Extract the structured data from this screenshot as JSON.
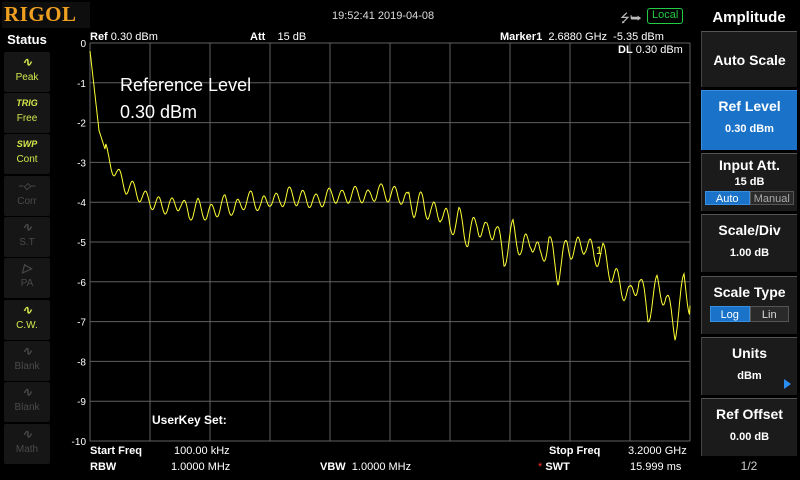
{
  "brand": {
    "name": "RIGOL",
    "color": "#f0a020"
  },
  "topbar": {
    "datetime": "19:52:41 2019-04-08",
    "usb_icon": "usb-icon",
    "remote_badge": "Local"
  },
  "status": {
    "title": "Status",
    "items": [
      {
        "icon": "peak-icon",
        "glyph": "∿",
        "label": "Peak",
        "active": true
      },
      {
        "icon": "trig-icon",
        "glyph": "TRIG",
        "label": "Free",
        "active": true
      },
      {
        "icon": "sweep-icon",
        "glyph": "SWP",
        "label": "Cont",
        "active": true
      },
      {
        "icon": "correction-icon",
        "glyph": "−◇−",
        "label": "Corr",
        "active": false
      },
      {
        "icon": "signal-track-icon",
        "glyph": "∿",
        "label": "S.T",
        "active": false
      },
      {
        "icon": "preamp-icon",
        "glyph": "▷",
        "label": "PA",
        "active": false
      },
      {
        "icon": "cw-icon",
        "glyph": "∿",
        "label": "C.W.",
        "active": true
      },
      {
        "icon": "trace-blank-icon",
        "glyph": "∿",
        "label": "Blank",
        "active": false
      },
      {
        "icon": "trace-blank-icon",
        "glyph": "∿",
        "label": "Blank",
        "active": false
      },
      {
        "icon": "trace-math-icon",
        "glyph": "∿",
        "label": "Math",
        "active": false
      }
    ]
  },
  "header": {
    "ref_label": "Ref",
    "ref_value": "0.30 dBm",
    "att_label": "Att",
    "att_value": "15 dB",
    "marker_label": "Marker1",
    "marker_freq": "2.6880 GHz",
    "marker_amp": "-5.35 dBm",
    "dl_label": "DL",
    "dl_value": "0.30 dBm"
  },
  "overlay": {
    "title": "Reference Level",
    "value": "0.30 dBm",
    "userkey": "UserKey Set:"
  },
  "marker_flag": "1",
  "footer": {
    "start_label": "Start Freq",
    "start_value": "100.00 kHz",
    "stop_label": "Stop Freq",
    "stop_value": "3.2000 GHz",
    "rbw_label": "RBW",
    "rbw_value": "1.0000 MHz",
    "vbw_label": "VBW",
    "vbw_value": "1.0000 MHz",
    "swt_star": "*",
    "swt_label": "SWT",
    "swt_value": "15.999 ms"
  },
  "menu": {
    "title": "Amplitude",
    "auto_scale": "Auto Scale",
    "ref_level": {
      "label": "Ref Level",
      "value": "0.30 dBm"
    },
    "input_att": {
      "label": "Input Att.",
      "value": "15 dB",
      "opt_auto": "Auto",
      "opt_manual": "Manual"
    },
    "scale_div": {
      "label": "Scale/Div",
      "value": "1.00 dB"
    },
    "scale_type": {
      "label": "Scale Type",
      "opt_log": "Log",
      "opt_lin": "Lin"
    },
    "units": {
      "label": "Units",
      "value": "dBm"
    },
    "ref_offset": {
      "label": "Ref Offset",
      "value": "0.00 dB"
    },
    "page": "1/2"
  },
  "colors": {
    "trace": "#ffff33",
    "grid": "#606060",
    "active_button": "#1a73c8",
    "status_active": "#d4e84c",
    "local_badge": "#22cc44"
  },
  "chart_data": {
    "type": "line",
    "x_start_hz": 100000,
    "x_stop_hz": 3200000000,
    "ylim": [
      -10,
      0
    ],
    "y_ticks": [
      "0",
      "-1",
      "-2",
      "-3",
      "-4",
      "-5",
      "-6",
      "-7",
      "-8",
      "-9",
      "-10"
    ],
    "grid": true,
    "series": [
      {
        "x_ghz": [
          0.0,
          0.048,
          0.096,
          0.144,
          0.192,
          0.24,
          0.288,
          0.336,
          0.384,
          0.432,
          0.48,
          0.528,
          0.576,
          0.624,
          0.672,
          0.72,
          0.768,
          0.816,
          0.864,
          0.912,
          0.96,
          1.008,
          1.056,
          1.104,
          1.152,
          1.2,
          1.248,
          1.296,
          1.344,
          1.392,
          1.44,
          1.488,
          1.536,
          1.584,
          1.632,
          1.68,
          1.728,
          1.776,
          1.824,
          1.872,
          1.92,
          1.968,
          2.016,
          2.064,
          2.112,
          2.16,
          2.208,
          2.256,
          2.304,
          2.352,
          2.4,
          2.448,
          2.496,
          2.544,
          2.592,
          2.64,
          2.688,
          2.736,
          2.784,
          2.832,
          2.88,
          2.928,
          2.976,
          3.024,
          3.072,
          3.12,
          3.168,
          3.2
        ],
        "y_dbm": [
          -0.2,
          -2.2,
          -2.9,
          -3.3,
          -3.6,
          -3.7,
          -3.9,
          -4.0,
          -4.1,
          -4.1,
          -4.0,
          -4.3,
          -4.1,
          -4.3,
          -4.2,
          -4.0,
          -4.2,
          -4.0,
          -3.9,
          -4.1,
          -3.9,
          -4.0,
          -3.8,
          -3.9,
          -3.9,
          -4.0,
          -3.9,
          -3.8,
          -3.9,
          -3.8,
          -3.8,
          -3.9,
          -3.7,
          -3.8,
          -3.8,
          -3.9,
          -4.1,
          -4.0,
          -4.3,
          -4.2,
          -4.6,
          -4.4,
          -4.9,
          -4.5,
          -4.8,
          -4.6,
          -5.4,
          -4.7,
          -5.2,
          -4.9,
          -5.4,
          -5.0,
          -5.8,
          -5.1,
          -5.2,
          -5.0,
          -5.35,
          -5.3,
          -5.8,
          -6.1,
          -6.4,
          -5.9,
          -6.8,
          -6.1,
          -6.4,
          -7.2,
          -6.0,
          -6.6
        ]
      }
    ],
    "marker": {
      "x_ghz": 2.688,
      "y_dbm": -5.35,
      "label": "1"
    }
  }
}
